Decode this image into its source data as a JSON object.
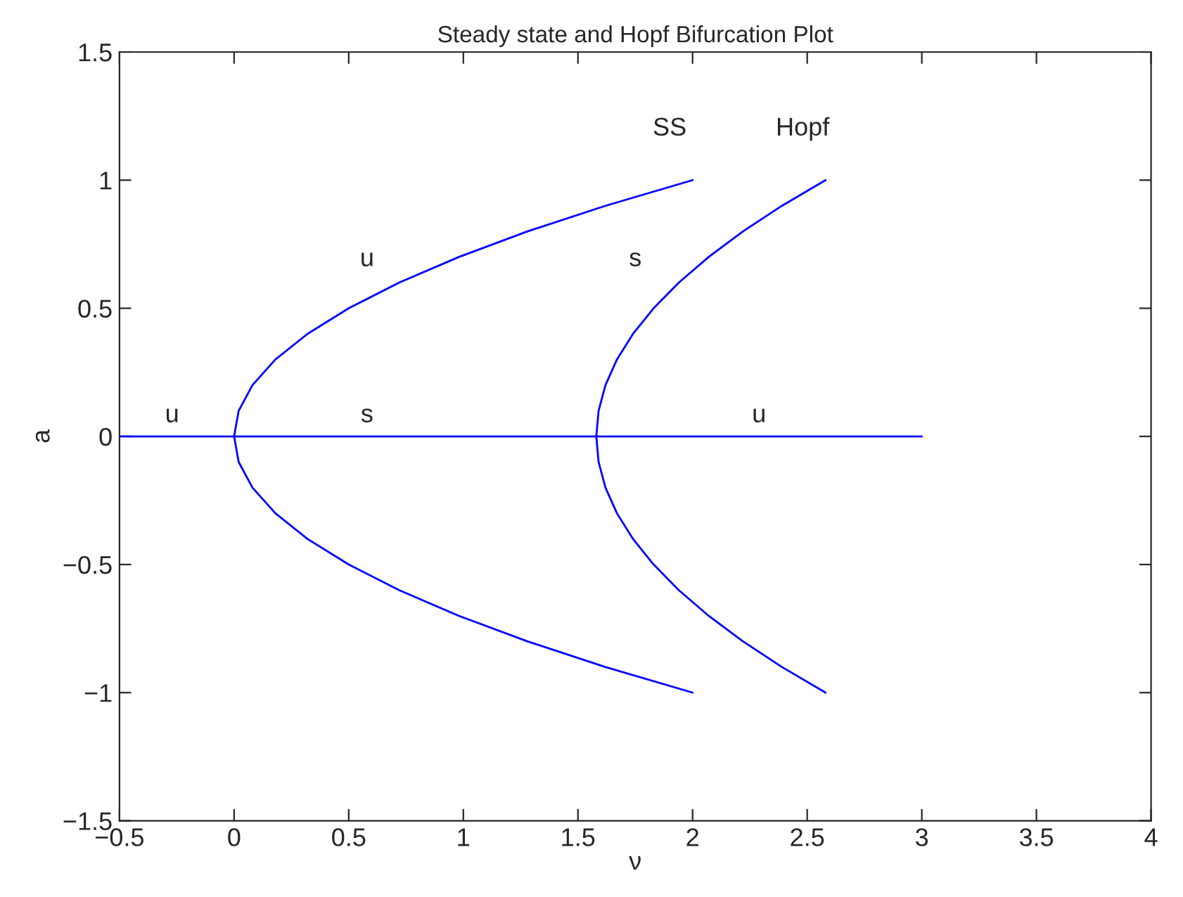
{
  "chart_data": {
    "type": "line",
    "title": "Steady state and Hopf Bifurcation Plot",
    "xlabel": "ν",
    "ylabel": "a",
    "series": [
      {
        "name": "SS",
        "color": "#0000ff",
        "x": [
          2,
          1.62,
          1.28,
          0.98,
          0.72,
          0.5,
          0.32,
          0.18,
          0.08,
          0.02,
          0,
          0.02,
          0.08,
          0.18,
          0.32,
          0.5,
          0.72,
          0.98,
          1.28,
          1.62,
          2
        ],
        "values": [
          -1,
          -0.9,
          -0.8,
          -0.7,
          -0.6,
          -0.5,
          -0.4,
          -0.3,
          -0.2,
          -0.1,
          0,
          0.1,
          0.2,
          0.3,
          0.4,
          0.5,
          0.6,
          0.7,
          0.8,
          0.9,
          1
        ]
      },
      {
        "name": "Hopf",
        "color": "#0000ff",
        "x": [
          2.58,
          2.39,
          2.22,
          2.07,
          1.94,
          1.83,
          1.74,
          1.67,
          1.62,
          1.59,
          1.58,
          1.59,
          1.62,
          1.67,
          1.74,
          1.83,
          1.94,
          2.07,
          2.22,
          2.39,
          2.58
        ],
        "values": [
          -1,
          -0.9,
          -0.8,
          -0.7,
          -0.6,
          -0.5,
          -0.4,
          -0.3,
          -0.2,
          -0.1,
          0,
          0.1,
          0.2,
          0.3,
          0.4,
          0.5,
          0.6,
          0.7,
          0.8,
          0.9,
          1
        ]
      },
      {
        "color": "#0000ff",
        "x": [
          -0.5,
          3
        ],
        "values": [
          0,
          0
        ]
      }
    ],
    "annotations": [
      "u",
      "s",
      "u",
      "u",
      "s"
    ],
    "xlim": [
      -0.5,
      4
    ],
    "xticks": [
      {
        "value": -0.5,
        "label": "−0.5"
      },
      0,
      0.5,
      1,
      1.5,
      2,
      2.5,
      3,
      3.5,
      4
    ],
    "ylim": [
      -1.5,
      1.5
    ],
    "yticks": [
      {
        "value": -1.5,
        "label": "−1.5"
      },
      {
        "value": -1,
        "label": "−1"
      },
      {
        "value": -0.5,
        "label": "−0.5"
      },
      0,
      0.5,
      1,
      1.5
    ],
    "grid": false,
    "legend": false
  }
}
